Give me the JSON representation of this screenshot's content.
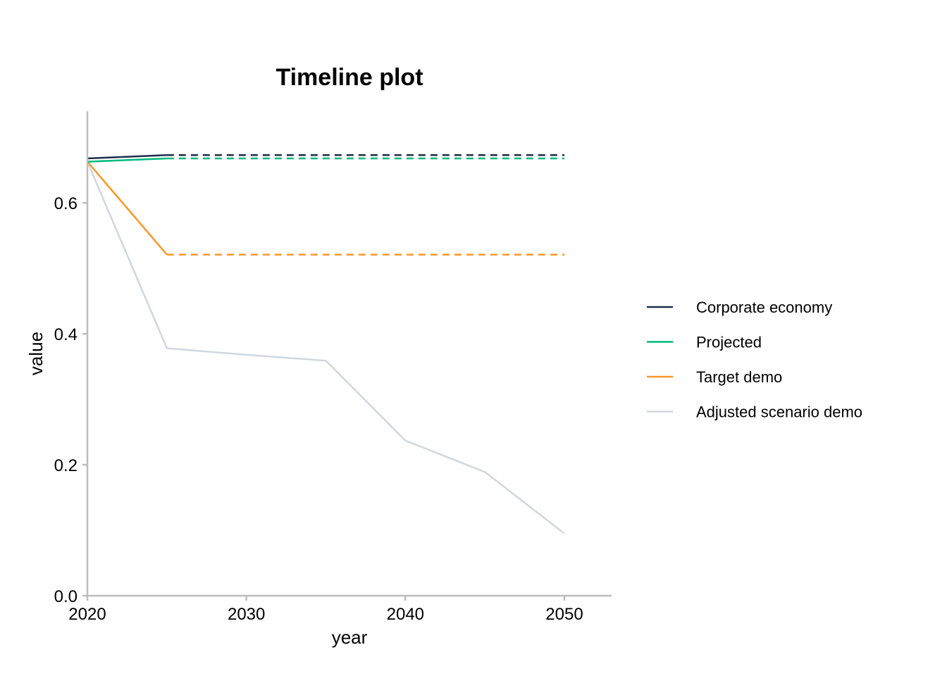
{
  "chart_data": {
    "type": "line",
    "title": "Timeline plot",
    "xlabel": "year",
    "ylabel": "value",
    "xlim": [
      2020,
      2053
    ],
    "ylim": [
      0,
      0.74
    ],
    "xticks": [
      2020,
      2030,
      2040,
      2050
    ],
    "yticks": [
      0.0,
      0.2,
      0.4,
      0.6
    ],
    "ytick_labels": [
      "0.0",
      "0.2",
      "0.4",
      "0.6"
    ],
    "xtick_labels": [
      "2020",
      "2030",
      "2040",
      "2050"
    ],
    "grid": false,
    "legend_position": "right",
    "series": [
      {
        "name": "Corporate economy",
        "color": "#1c2e4a",
        "solid": {
          "x": [
            2020,
            2025
          ],
          "y": [
            0.668,
            0.673
          ]
        },
        "dashed": {
          "x": [
            2025,
            2050
          ],
          "y": [
            0.673,
            0.673
          ]
        }
      },
      {
        "name": "Projected",
        "color": "#00b97c",
        "solid": {
          "x": [
            2020,
            2025
          ],
          "y": [
            0.663,
            0.668
          ]
        },
        "dashed": {
          "x": [
            2025,
            2050
          ],
          "y": [
            0.668,
            0.668
          ]
        }
      },
      {
        "name": "Target demo",
        "color": "#ff9623",
        "solid": {
          "x": [
            2020,
            2025
          ],
          "y": [
            0.663,
            0.521
          ]
        },
        "dashed": {
          "x": [
            2025,
            2050
          ],
          "y": [
            0.521,
            0.521
          ]
        }
      },
      {
        "name": "Adjusted scenario demo",
        "color": "#d0d7e1",
        "solid": {
          "x": [
            2020,
            2025,
            2030,
            2035,
            2040,
            2045,
            2050
          ],
          "y": [
            0.663,
            0.378,
            0.368,
            0.359,
            0.237,
            0.189,
            0.095
          ]
        },
        "dashed": null
      }
    ]
  }
}
